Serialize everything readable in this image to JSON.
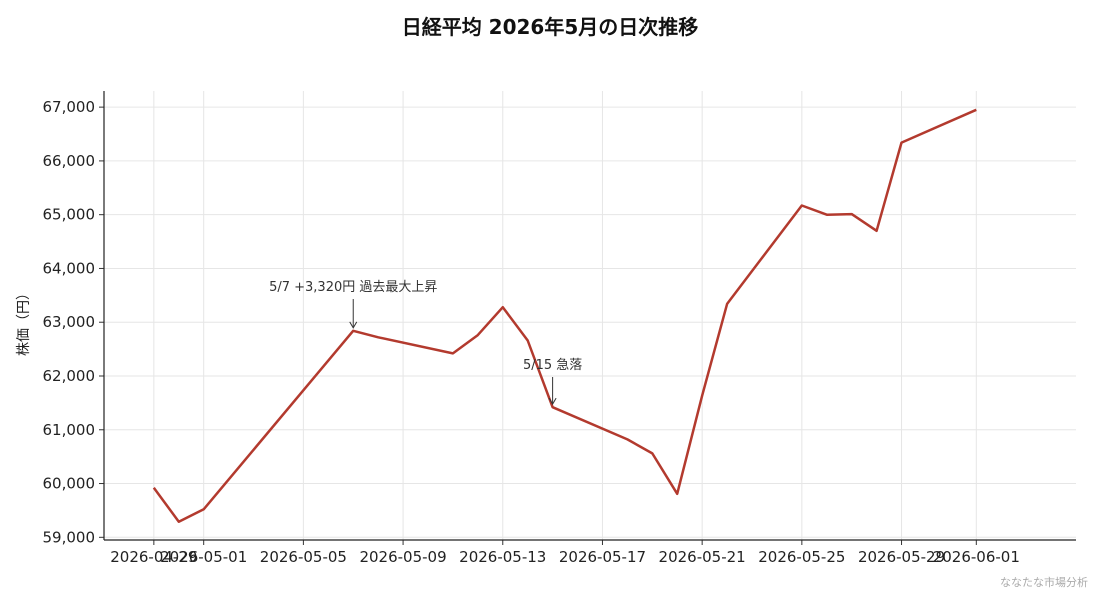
{
  "chart_data": {
    "type": "line",
    "title": "日経平均 2026年5月の日次推移",
    "xlabel": "",
    "ylabel": "株価（円）",
    "x": [
      "2026-04-29",
      "2026-04-30",
      "2026-05-01",
      "2026-05-07",
      "2026-05-08",
      "2026-05-11",
      "2026-05-12",
      "2026-05-13",
      "2026-05-14",
      "2026-05-15",
      "2026-05-18",
      "2026-05-19",
      "2026-05-20",
      "2026-05-21",
      "2026-05-22",
      "2026-05-25",
      "2026-05-26",
      "2026-05-27",
      "2026-05-28",
      "2026-05-29",
      "2026-06-01"
    ],
    "series": [
      {
        "name": "",
        "values": [
          59920,
          59290,
          59520,
          62840,
          62720,
          62420,
          62760,
          63280,
          62660,
          61420,
          60820,
          60560,
          59810,
          61640,
          63340,
          65170,
          65000,
          65010,
          64700,
          66340,
          66950
        ]
      }
    ],
    "x_ticks": [
      "2026-04-29",
      "2026-05-01",
      "2026-05-05",
      "2026-05-09",
      "2026-05-13",
      "2026-05-17",
      "2026-05-21",
      "2026-05-25",
      "2026-05-29",
      "2026-06-01"
    ],
    "y_ticks": [
      59000,
      60000,
      61000,
      62000,
      63000,
      64000,
      65000,
      66000,
      67000
    ],
    "xlim": [
      "2026-04-27",
      "2026-06-05"
    ],
    "ylim": [
      58950,
      67300
    ],
    "grid": true,
    "legend": "none",
    "line_color": "#b33a2e",
    "annotations": [
      {
        "text": "5/7 +3,320円 過去最大上昇",
        "x": "2026-05-07",
        "y": 62840,
        "text_y": 63580
      },
      {
        "text": "5/15 急落",
        "x": "2026-05-15",
        "y": 61420,
        "text_y": 62130
      }
    ],
    "credit": "ななたな市場分析"
  }
}
